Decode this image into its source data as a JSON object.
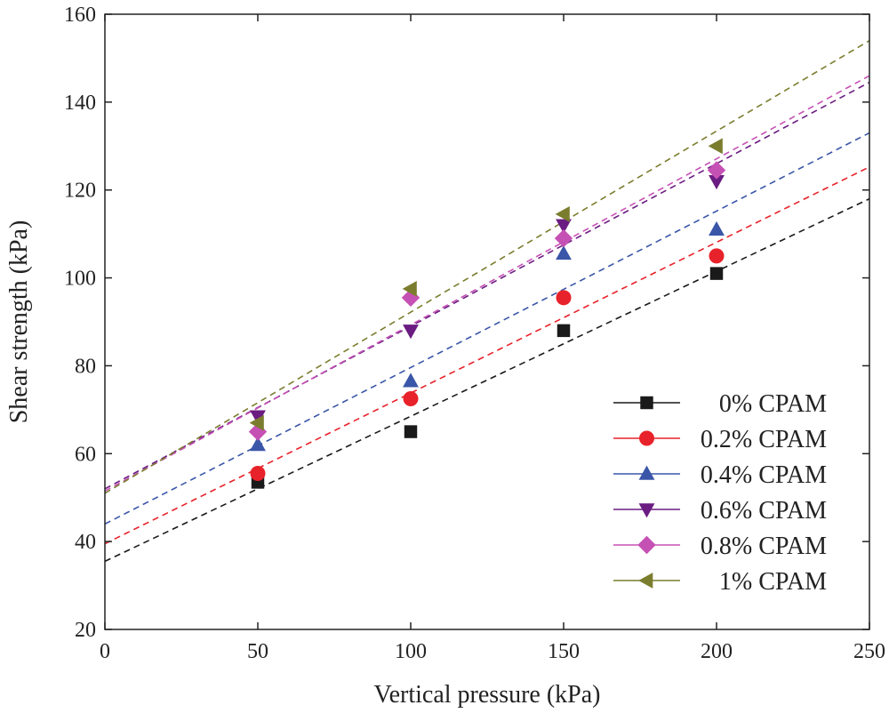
{
  "chart_data": {
    "type": "scatter",
    "title": "",
    "xlabel": "Vertical pressure (kPa)",
    "ylabel": "Shear strength (kPa)",
    "xlim": [
      0,
      250
    ],
    "ylim": [
      20,
      160
    ],
    "xticks": [
      0,
      50,
      100,
      150,
      200,
      250
    ],
    "yticks": [
      20,
      40,
      60,
      80,
      100,
      120,
      140,
      160
    ],
    "xtick_labels": [
      "0",
      "50",
      "100",
      "150",
      "200",
      "250"
    ],
    "ytick_labels": [
      "20",
      "40",
      "60",
      "80",
      "100",
      "120",
      "140",
      "160"
    ],
    "grid": false,
    "legend_position": "bottom-right",
    "series": [
      {
        "name": "0%  CPAM",
        "marker": "square",
        "color": "#1a1a1a",
        "x": [
          50,
          100,
          150,
          200
        ],
        "y": [
          53.5,
          65,
          88,
          101
        ],
        "fit": {
          "intercept": 35.5,
          "slope": 0.33
        }
      },
      {
        "name": "0.2% CPAM",
        "marker": "circle",
        "color": "#e8222a",
        "x": [
          50,
          100,
          150,
          200
        ],
        "y": [
          55.5,
          72.5,
          95.5,
          105
        ],
        "fit": {
          "intercept": 39.5,
          "slope": 0.343
        }
      },
      {
        "name": "0.4% CPAM",
        "marker": "triangle-up",
        "color": "#3a56a8",
        "x": [
          50,
          100,
          150,
          200
        ],
        "y": [
          62,
          76.5,
          105.5,
          111
        ],
        "fit": {
          "intercept": 44,
          "slope": 0.356
        }
      },
      {
        "name": "0.6% CPAM",
        "marker": "triangle-down",
        "color": "#6a1c82",
        "x": [
          50,
          100,
          150,
          200
        ],
        "y": [
          68.5,
          88,
          112,
          122
        ],
        "fit": {
          "intercept": 52,
          "slope": 0.37
        }
      },
      {
        "name": "0.8% CPAM",
        "marker": "diamond",
        "color": "#c651b4",
        "x": [
          50,
          100,
          150,
          200
        ],
        "y": [
          65,
          95.5,
          109,
          124.5
        ],
        "fit": {
          "intercept": 51.5,
          "slope": 0.378
        }
      },
      {
        "name": "1%  CPAM",
        "marker": "triangle-left",
        "color": "#7b7d2e",
        "x": [
          50,
          100,
          150,
          200
        ],
        "y": [
          67,
          97.5,
          114.5,
          130
        ],
        "fit": {
          "intercept": 51,
          "slope": 0.412
        }
      }
    ]
  }
}
